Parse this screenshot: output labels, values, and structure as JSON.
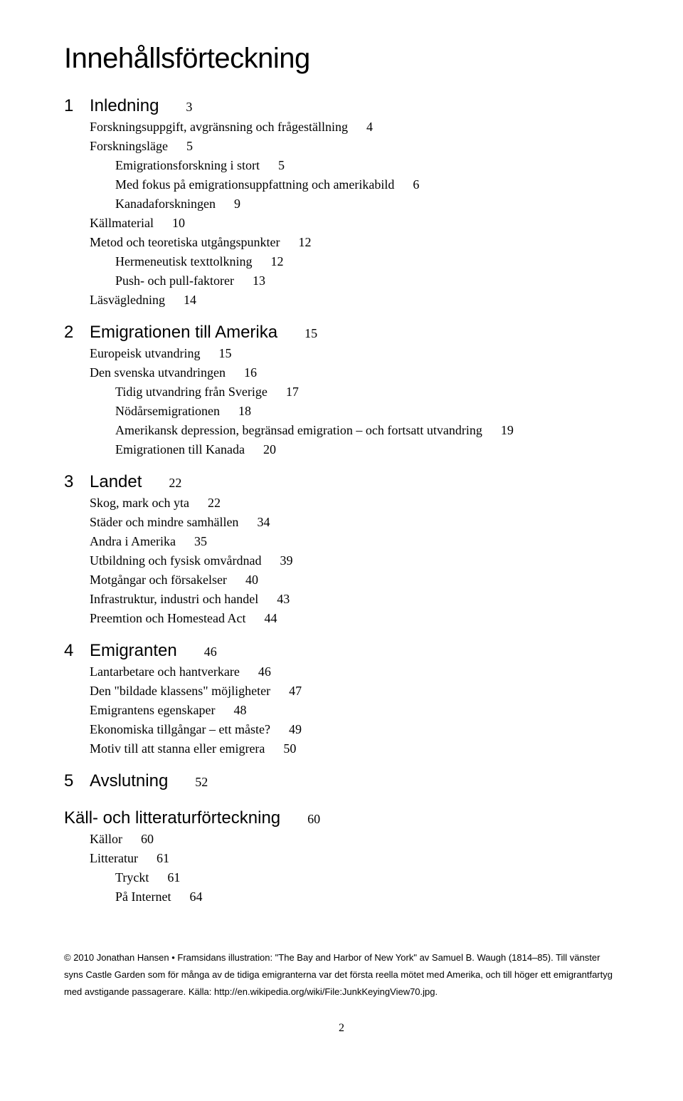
{
  "title": "Innehållsförteckning",
  "sections": [
    {
      "num": "1",
      "title": "Inledning",
      "page": "3",
      "entries": [
        {
          "label": "Forskningsuppgift, avgränsning och frågeställning",
          "page": "4",
          "indent": 0
        },
        {
          "label": "Forskningsläge",
          "page": "5",
          "indent": 0
        },
        {
          "label": "Emigrationsforskning i stort",
          "page": "5",
          "indent": 1
        },
        {
          "label": "Med fokus på emigrationsuppfattning och amerikabild",
          "page": "6",
          "indent": 1
        },
        {
          "label": "Kanadaforskningen",
          "page": "9",
          "indent": 1
        },
        {
          "label": "Källmaterial",
          "page": "10",
          "indent": 0
        },
        {
          "label": "Metod och teoretiska utgångspunkter",
          "page": "12",
          "indent": 0
        },
        {
          "label": "Hermeneutisk texttolkning",
          "page": "12",
          "indent": 1
        },
        {
          "label": "Push- och pull-faktorer",
          "page": "13",
          "indent": 1
        },
        {
          "label": "Läsvägledning",
          "page": "14",
          "indent": 0
        }
      ]
    },
    {
      "num": "2",
      "title": "Emigrationen till Amerika",
      "page": "15",
      "entries": [
        {
          "label": "Europeisk utvandring",
          "page": "15",
          "indent": 0
        },
        {
          "label": "Den svenska utvandringen",
          "page": "16",
          "indent": 0
        },
        {
          "label": "Tidig utvandring från Sverige",
          "page": "17",
          "indent": 1
        },
        {
          "label": "Nödårsemigrationen",
          "page": "18",
          "indent": 1
        },
        {
          "label": "Amerikansk depression, begränsad emigration – och fortsatt utvandring",
          "page": "19",
          "indent": 1
        },
        {
          "label": "Emigrationen till Kanada",
          "page": "20",
          "indent": 1
        }
      ]
    },
    {
      "num": "3",
      "title": "Landet",
      "page": "22",
      "entries": [
        {
          "label": "Skog, mark och yta",
          "page": "22",
          "indent": 0
        },
        {
          "label": "Städer och mindre samhällen",
          "page": "34",
          "indent": 0
        },
        {
          "label": "Andra i Amerika",
          "page": "35",
          "indent": 0
        },
        {
          "label": "Utbildning och fysisk omvårdnad",
          "page": "39",
          "indent": 0
        },
        {
          "label": "Motgångar och försakelser",
          "page": "40",
          "indent": 0
        },
        {
          "label": "Infrastruktur, industri och handel",
          "page": "43",
          "indent": 0
        },
        {
          "label": "Preemtion och Homestead Act",
          "page": "44",
          "indent": 0
        }
      ]
    },
    {
      "num": "4",
      "title": "Emigranten",
      "page": "46",
      "entries": [
        {
          "label": "Lantarbetare och hantverkare",
          "page": "46",
          "indent": 0
        },
        {
          "label": "Den \"bildade klassens\" möjligheter",
          "page": "47",
          "indent": 0
        },
        {
          "label": "Emigrantens egenskaper",
          "page": "48",
          "indent": 0
        },
        {
          "label": "Ekonomiska tillgångar – ett måste?",
          "page": "49",
          "indent": 0
        },
        {
          "label": "Motiv till att stanna eller emigrera",
          "page": "50",
          "indent": 0
        }
      ]
    },
    {
      "num": "5",
      "title": "Avslutning",
      "page": "52",
      "entries": []
    }
  ],
  "refSection": {
    "title": "Käll- och litteraturförteckning",
    "page": "60",
    "entries": [
      {
        "label": "Källor",
        "page": "60",
        "indent": 0
      },
      {
        "label": "Litteratur",
        "page": "61",
        "indent": 0
      },
      {
        "label": "Tryckt",
        "page": "61",
        "indent": 1
      },
      {
        "label": "På Internet",
        "page": "64",
        "indent": 1
      }
    ]
  },
  "footnote": "© 2010 Jonathan Hansen • Framsidans illustration: \"The Bay and Harbor of New York\" av Samuel B. Waugh (1814–85). Till vänster syns Castle Garden som för många av de tidiga emigranterna var det första reella mötet med Amerika, och till höger ett emigrantfartyg med avstigande passagerare. Källa: http://en.wikipedia.org/wiki/File:JunkKeyingView70.jpg.",
  "pageNumber": "2"
}
